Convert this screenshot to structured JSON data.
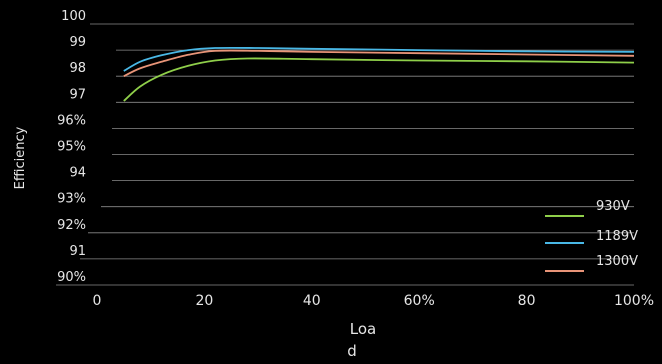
{
  "chart_data": {
    "type": "line",
    "title": "",
    "xlabel_lines": [
      "Loa",
      "d"
    ],
    "ylabel": "Efficiency",
    "x_ticks": [
      0,
      20,
      40,
      60,
      80,
      100
    ],
    "x_tick_labels": [
      "0",
      "20",
      "40",
      "60%",
      "80",
      "100%"
    ],
    "xlim": [
      0,
      100
    ],
    "ylim": [
      90,
      100
    ],
    "y_ticks": [
      90,
      91,
      92,
      93,
      94,
      95,
      96,
      97,
      98,
      99,
      100
    ],
    "y_tick_labels": [
      "90%",
      "91",
      "92%",
      "93%",
      "94",
      "95%",
      "96%",
      "97",
      "98",
      "99",
      "100"
    ],
    "grid": "horizontal",
    "legend_position": "bottom-right",
    "series": [
      {
        "name": "930V",
        "color": "#8fcf4a",
        "points": [
          [
            5,
            97.05
          ],
          [
            8,
            97.6
          ],
          [
            12,
            98.05
          ],
          [
            17,
            98.4
          ],
          [
            22,
            98.6
          ],
          [
            28,
            98.68
          ],
          [
            40,
            98.65
          ],
          [
            60,
            98.6
          ],
          [
            80,
            98.57
          ],
          [
            100,
            98.52
          ]
        ]
      },
      {
        "name": "1189V",
        "color": "#49b8e6",
        "points": [
          [
            5,
            98.2
          ],
          [
            8,
            98.55
          ],
          [
            12,
            98.8
          ],
          [
            17,
            99.0
          ],
          [
            22,
            99.08
          ],
          [
            30,
            99.08
          ],
          [
            40,
            99.05
          ],
          [
            60,
            99.0
          ],
          [
            80,
            98.95
          ],
          [
            100,
            98.93
          ]
        ]
      },
      {
        "name": "1300V",
        "color": "#e89478",
        "points": [
          [
            5,
            98.0
          ],
          [
            8,
            98.3
          ],
          [
            12,
            98.55
          ],
          [
            17,
            98.82
          ],
          [
            22,
            98.97
          ],
          [
            30,
            98.97
          ],
          [
            40,
            98.93
          ],
          [
            60,
            98.88
          ],
          [
            80,
            98.83
          ],
          [
            100,
            98.78
          ]
        ]
      }
    ]
  }
}
